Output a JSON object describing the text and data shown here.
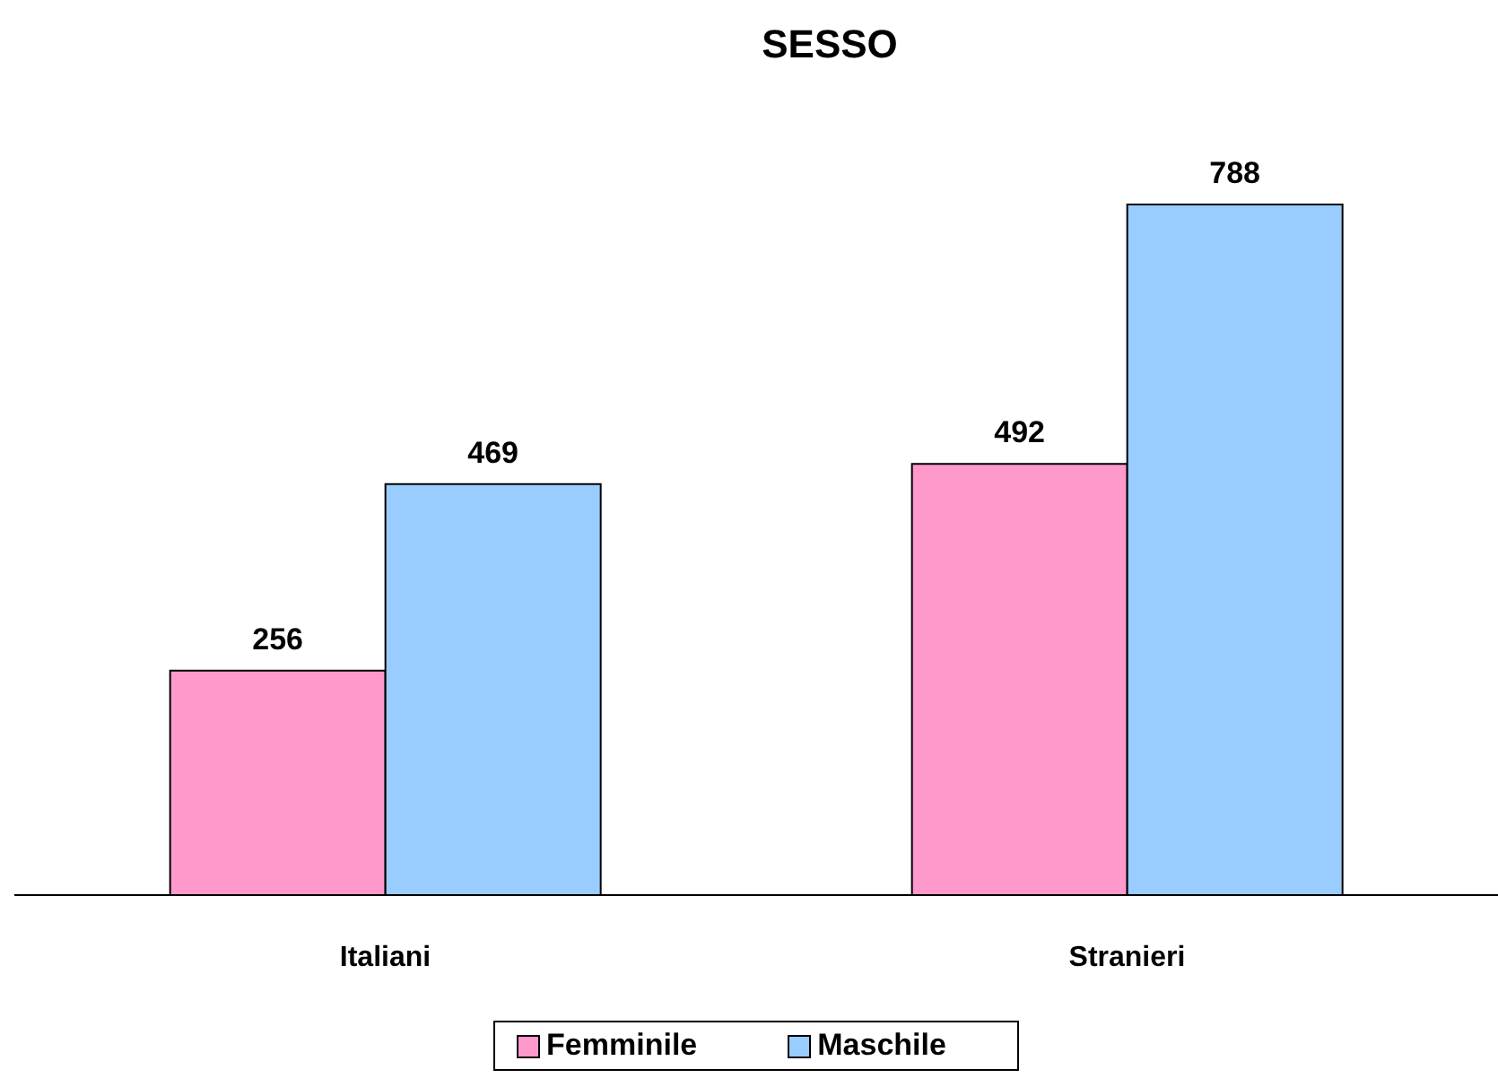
{
  "chart_data": {
    "type": "bar",
    "title": "SESSO",
    "categories": [
      "Italiani",
      "Stranieri"
    ],
    "series": [
      {
        "name": "Femminile",
        "color": "#ff99cc",
        "values": [
          256,
          492
        ]
      },
      {
        "name": "Maschile",
        "color": "#99ccff",
        "values": [
          469,
          788
        ]
      }
    ],
    "data_labels": true,
    "legend": "bottom"
  }
}
